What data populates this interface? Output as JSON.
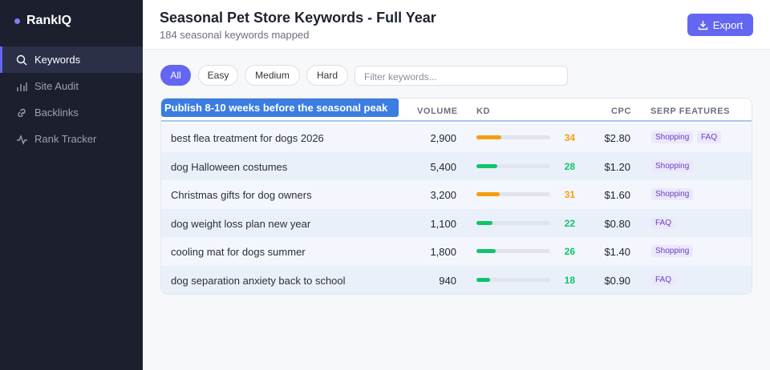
{
  "sidebar": {
    "brand": "RankIQ",
    "nav": [
      "Keywords",
      "Site Audit",
      "Backlinks",
      "Rank Tracker"
    ]
  },
  "header": {
    "title": "Seasonal Pet Store Keywords - Full Year",
    "subtitle": "184 seasonal keywords mapped",
    "export": "Export"
  },
  "filters": {
    "pills": [
      "All",
      "Easy",
      "Medium",
      "Hard"
    ],
    "search_placeholder": "Filter keywords..."
  },
  "table": {
    "tooltip": "Publish 8-10 weeks before the seasonal peak",
    "columns": [
      "VOLUME",
      "KD",
      "CPC",
      "SERP FEATURES"
    ],
    "rows": [
      {
        "keyword": "best flea treatment for dogs 2026",
        "volume": "2,900",
        "kd": 34,
        "kd_color": "#f59e0b",
        "cpc": "$2.80",
        "serp": [
          "Shopping",
          "FAQ"
        ]
      },
      {
        "keyword": "dog Halloween costumes",
        "volume": "5,400",
        "kd": 28,
        "kd_color": "#10c46b",
        "cpc": "$1.20",
        "serp": [
          "Shopping"
        ]
      },
      {
        "keyword": "Christmas gifts for dog owners",
        "volume": "3,200",
        "kd": 31,
        "kd_color": "#f59e0b",
        "cpc": "$1.60",
        "serp": [
          "Shopping"
        ]
      },
      {
        "keyword": "dog weight loss plan new year",
        "volume": "1,100",
        "kd": 22,
        "kd_color": "#10c46b",
        "cpc": "$0.80",
        "serp": [
          "FAQ"
        ]
      },
      {
        "keyword": "cooling mat for dogs summer",
        "volume": "1,800",
        "kd": 26,
        "kd_color": "#10c46b",
        "cpc": "$1.40",
        "serp": [
          "Shopping"
        ]
      },
      {
        "keyword": "dog separation anxiety back to school",
        "volume": "940",
        "kd": 18,
        "kd_color": "#10c46b",
        "cpc": "$0.90",
        "serp": [
          "FAQ"
        ]
      }
    ]
  }
}
